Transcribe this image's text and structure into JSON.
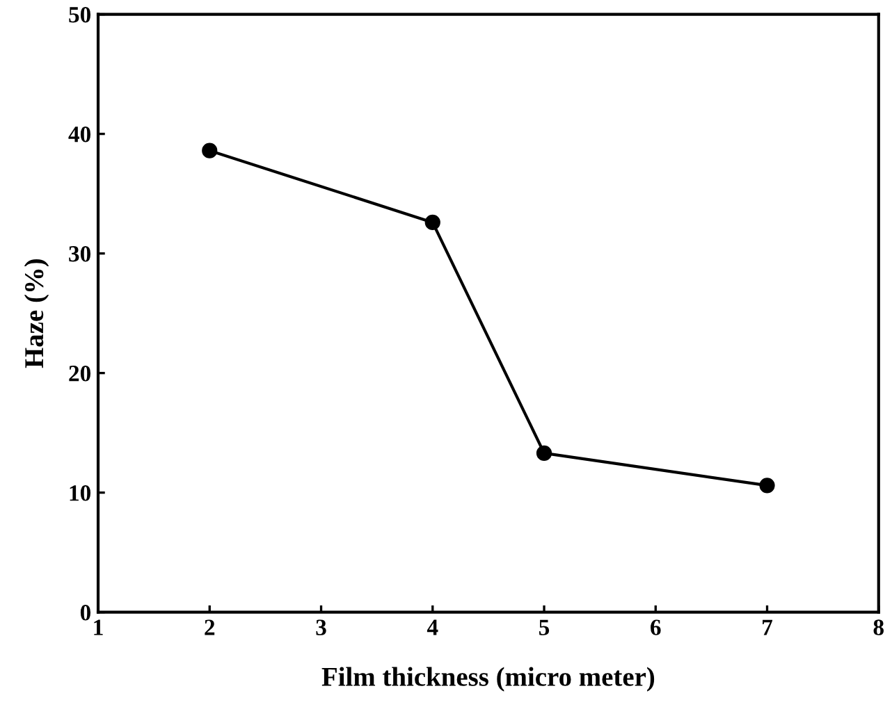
{
  "chart_data": {
    "type": "line",
    "xlabel": "Film thickness (micro meter)",
    "ylabel": "Haze (%)",
    "x": [
      2,
      4,
      5,
      7
    ],
    "series": [
      {
        "color": "#000000",
        "values": [
          38.6,
          32.6,
          13.3,
          10.6
        ]
      }
    ],
    "xlim": [
      1,
      8
    ],
    "xticks": [
      1,
      2,
      3,
      4,
      5,
      6,
      7,
      8
    ],
    "ylim": [
      0,
      50
    ],
    "yticks": [
      0,
      10,
      20,
      30,
      40,
      50
    ],
    "marker": "circle",
    "line_style": "solid",
    "grid": false,
    "legend": false
  }
}
